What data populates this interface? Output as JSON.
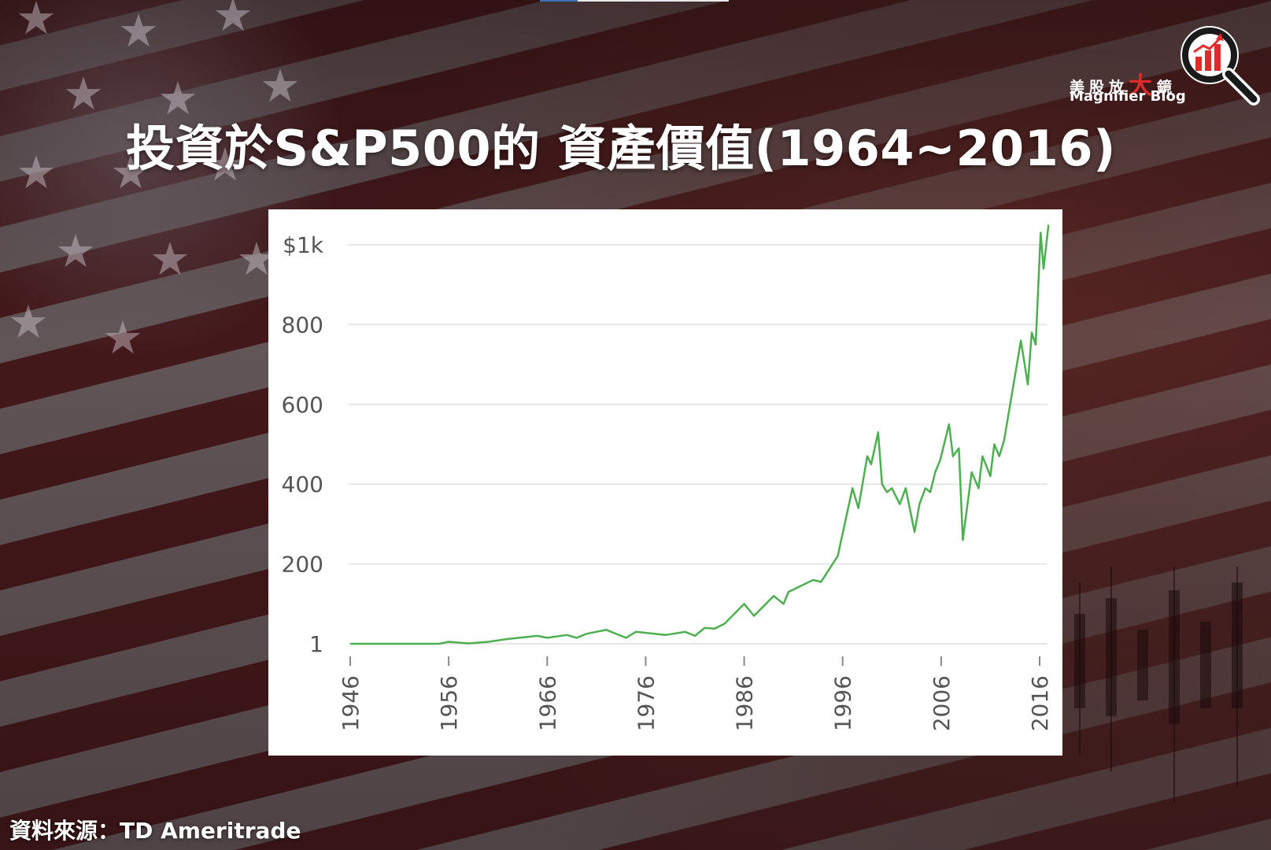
{
  "slide": {
    "title": "投資於S&P500的 資產價值(1964~2016)",
    "source": "資料來源：TD Ameritrade"
  },
  "logo": {
    "chinese_prefix": "美股放",
    "chinese_big": "大",
    "chinese_suffix": "鏡",
    "english": "Magnifier Blog",
    "icon": "magnifier-bar-chart-icon",
    "accent_color": "#e12b2b"
  },
  "colors": {
    "line": "#4caf50",
    "grid": "#e6e6e6",
    "tick_text": "#555555"
  },
  "chart_data": {
    "type": "line",
    "title": "",
    "xlabel": "",
    "ylabel": "",
    "ylim": [
      0,
      1000
    ],
    "xlim": [
      1946,
      2016
    ],
    "grid": true,
    "legend": "none",
    "y_ticks": [
      {
        "value": 0,
        "label": "1"
      },
      {
        "value": 200,
        "label": "200"
      },
      {
        "value": 400,
        "label": "400"
      },
      {
        "value": 600,
        "label": "600"
      },
      {
        "value": 800,
        "label": "800"
      },
      {
        "value": 1000,
        "label": "$1k"
      }
    ],
    "x_ticks": [
      "1946",
      "1956",
      "1966",
      "1976",
      "1986",
      "1996",
      "2006",
      "2016"
    ],
    "series": [
      {
        "x": [
          1946,
          1955,
          1956,
          1958,
          1960,
          1962,
          1965,
          1966,
          1968,
          1969,
          1970,
          1972,
          1974,
          1975,
          1978,
          1980,
          1981,
          1982,
          1983,
          1984,
          1986,
          1987,
          1989,
          1990,
          1990.5,
          1993,
          1993.8,
          1995.5,
          1997,
          1997.6,
          1998.5,
          1998.9,
          1999.6,
          2000,
          2000.5,
          2001,
          2001.8,
          2002.4,
          2003.3,
          2003.8,
          2004.4,
          2004.9,
          2005.4,
          2005.9,
          2006.8,
          2007.2,
          2007.8,
          2008.2,
          2009.1,
          2009.8,
          2010.2,
          2011,
          2011.4,
          2011.9,
          2012.4,
          2014.1,
          2014.8,
          2015.2,
          2015.6,
          2016.1,
          2016.4,
          2016.9
        ],
        "y": [
          0,
          0,
          5,
          1,
          5,
          12,
          20,
          15,
          22,
          15,
          25,
          35,
          15,
          30,
          22,
          30,
          20,
          40,
          38,
          50,
          100,
          70,
          120,
          100,
          130,
          160,
          155,
          220,
          390,
          340,
          470,
          450,
          530,
          400,
          380,
          390,
          350,
          390,
          280,
          350,
          390,
          380,
          430,
          460,
          550,
          470,
          490,
          260,
          430,
          390,
          470,
          420,
          500,
          470,
          510,
          760,
          650,
          780,
          750,
          1030,
          940,
          1050
        ]
      }
    ]
  }
}
